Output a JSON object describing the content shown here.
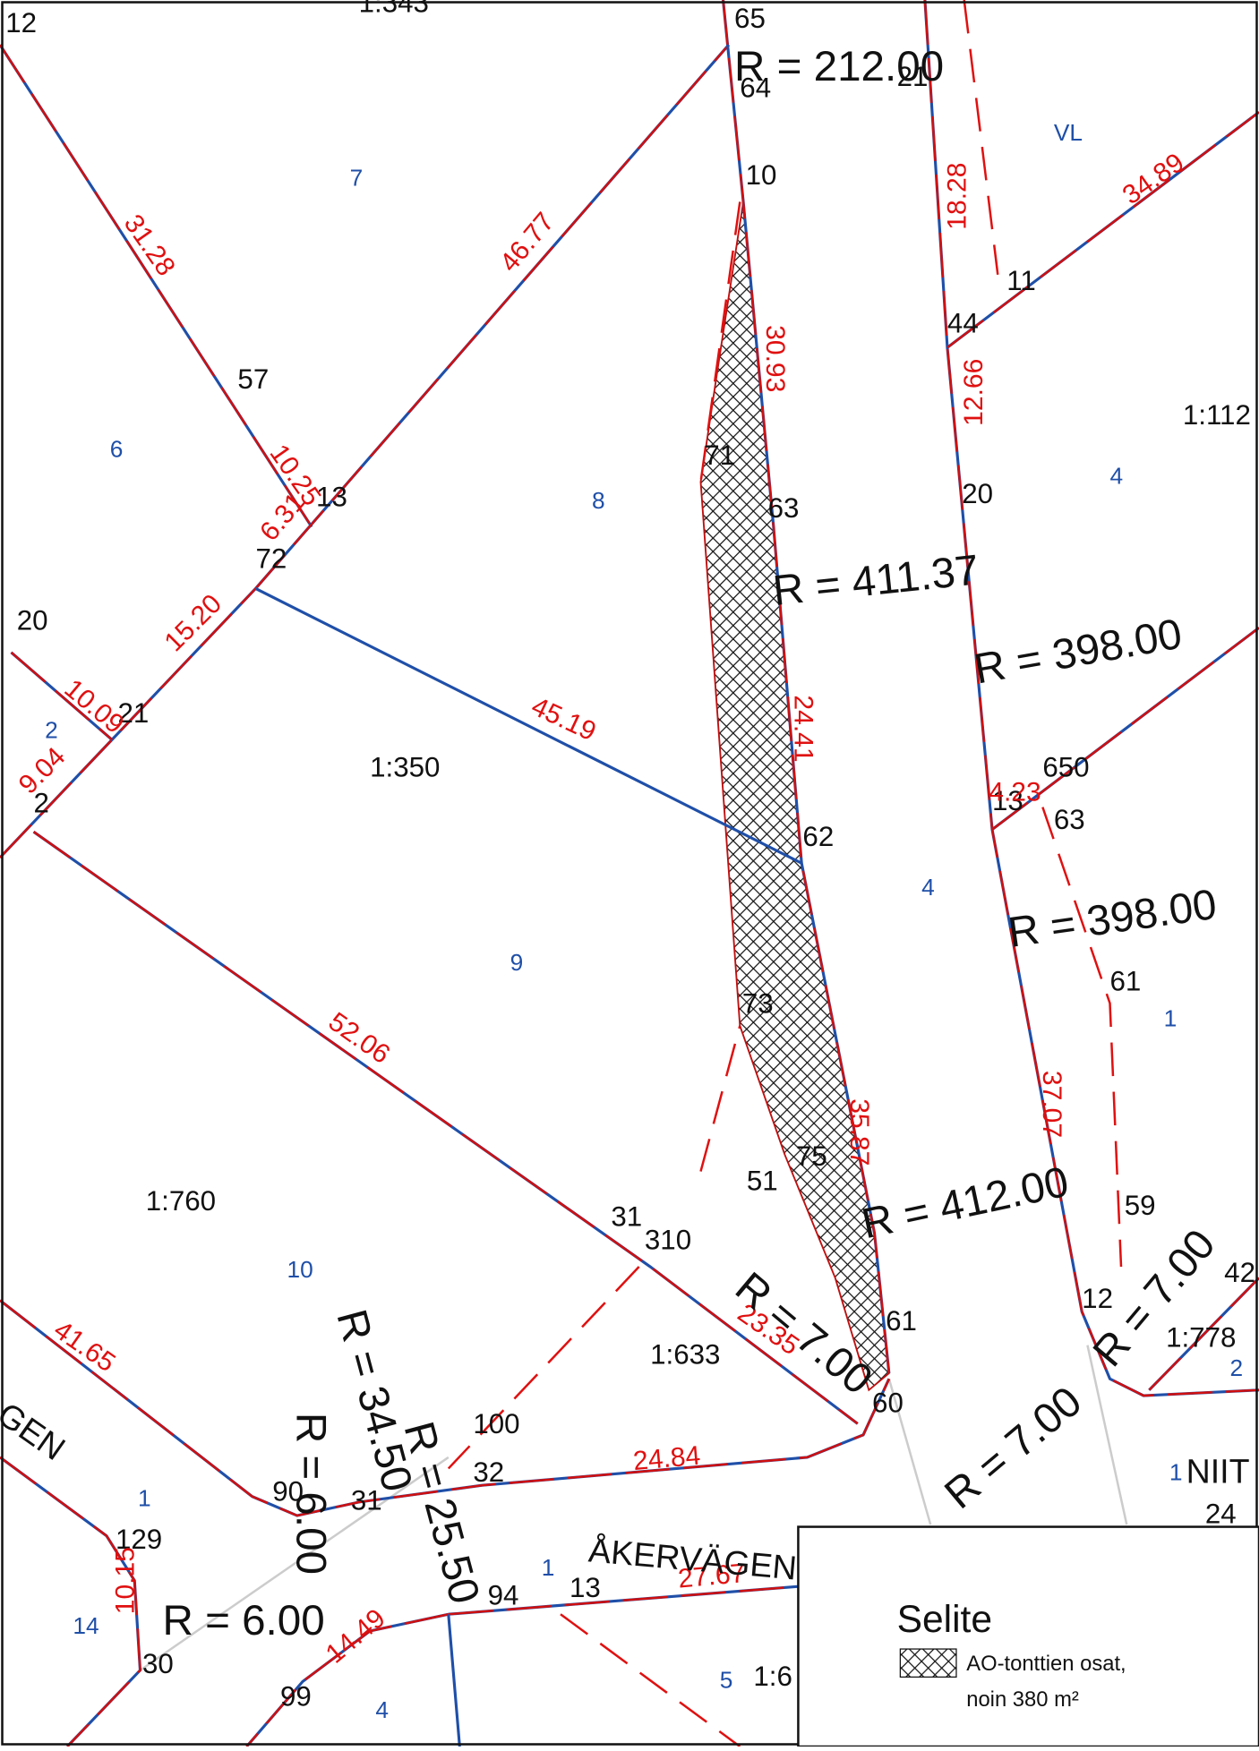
{
  "map": {
    "point_labels": [
      "12",
      "65",
      "64",
      "21",
      "10",
      "57",
      "13",
      "72",
      "20",
      "21",
      "2",
      "71",
      "63",
      "62",
      "11",
      "44",
      "20",
      "650",
      "13",
      "63",
      "61",
      "73",
      "51",
      "75",
      "59",
      "31",
      "310",
      "61",
      "12",
      "42",
      "60",
      "100",
      "32",
      "31",
      "90",
      "129",
      "94",
      "13",
      "30",
      "99",
      "24"
    ],
    "scale_labels": [
      "1:343",
      "1:350",
      "1:760",
      "1:112",
      "1:633",
      "1:778",
      "1:6"
    ],
    "area_labels": [
      "7",
      "VL",
      "6",
      "8",
      "4",
      "2",
      "4",
      "9",
      "1",
      "10",
      "1",
      "1",
      "14",
      "1",
      "5",
      "4",
      "2"
    ],
    "dimension_labels": [
      "31.28",
      "46.77",
      "10.25",
      "6.31",
      "15.20",
      "10.09",
      "9.04",
      "45.19",
      "52.06",
      "30.93",
      "24.41",
      "35.87",
      "18.28",
      "12.66",
      "34.89",
      "37.07",
      "41.65",
      "23.35",
      "24.84",
      "27.67",
      "10.15",
      "14.49",
      "4.23"
    ],
    "radius_labels": [
      "R = 212.00",
      "R = 411.37",
      "R = 398.00",
      "R = 398.00",
      "R = 412.00",
      "R = 6.00",
      "R = 6.00",
      "R = 34.50",
      "R = 25.50",
      "R = 7.00",
      "R = 7.00",
      "R = 7.00"
    ],
    "street_labels": [
      "ÅKERVÄGEN",
      "GEN",
      "NIIT"
    ],
    "legend": {
      "title": "Selite",
      "item": "AO-tonttien osat,",
      "area": "noin 380 m²"
    }
  }
}
